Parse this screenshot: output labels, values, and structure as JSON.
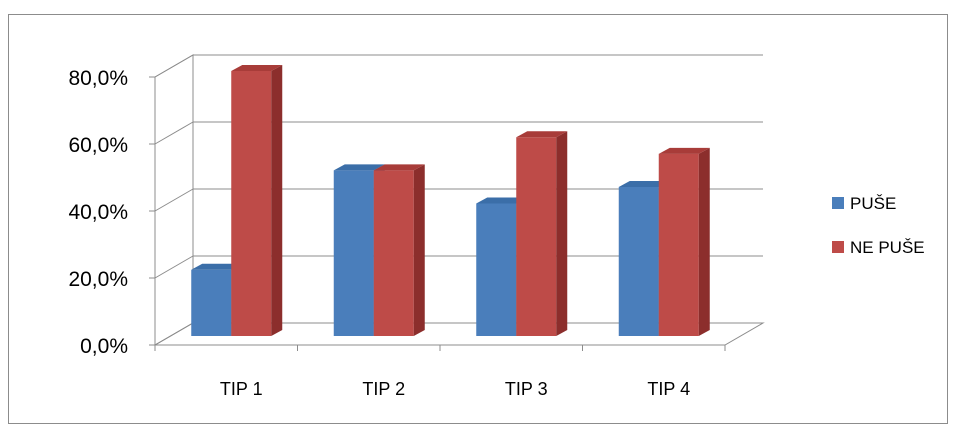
{
  "chart_data": {
    "type": "bar",
    "categories": [
      "TIP 1",
      "TIP 2",
      "TIP 3",
      "TIP 4"
    ],
    "series": [
      {
        "name": "PUŠE",
        "values": [
          20.0,
          50.0,
          40.0,
          45.0
        ],
        "color": "#4a7ebb",
        "side_color": "#2c5f99",
        "top_color": "#3b6ea8"
      },
      {
        "name": "NE PUŠE",
        "values": [
          80.0,
          50.0,
          60.0,
          55.0
        ],
        "color": "#be4b48",
        "side_color": "#8c2e2c",
        "top_color": "#a83c39"
      }
    ],
    "y_ticks": [
      "0,0%",
      "20,0%",
      "40,0%",
      "60,0%",
      "80,0%"
    ],
    "ylim": [
      0,
      80
    ],
    "grid": true,
    "legend_position": "right"
  }
}
